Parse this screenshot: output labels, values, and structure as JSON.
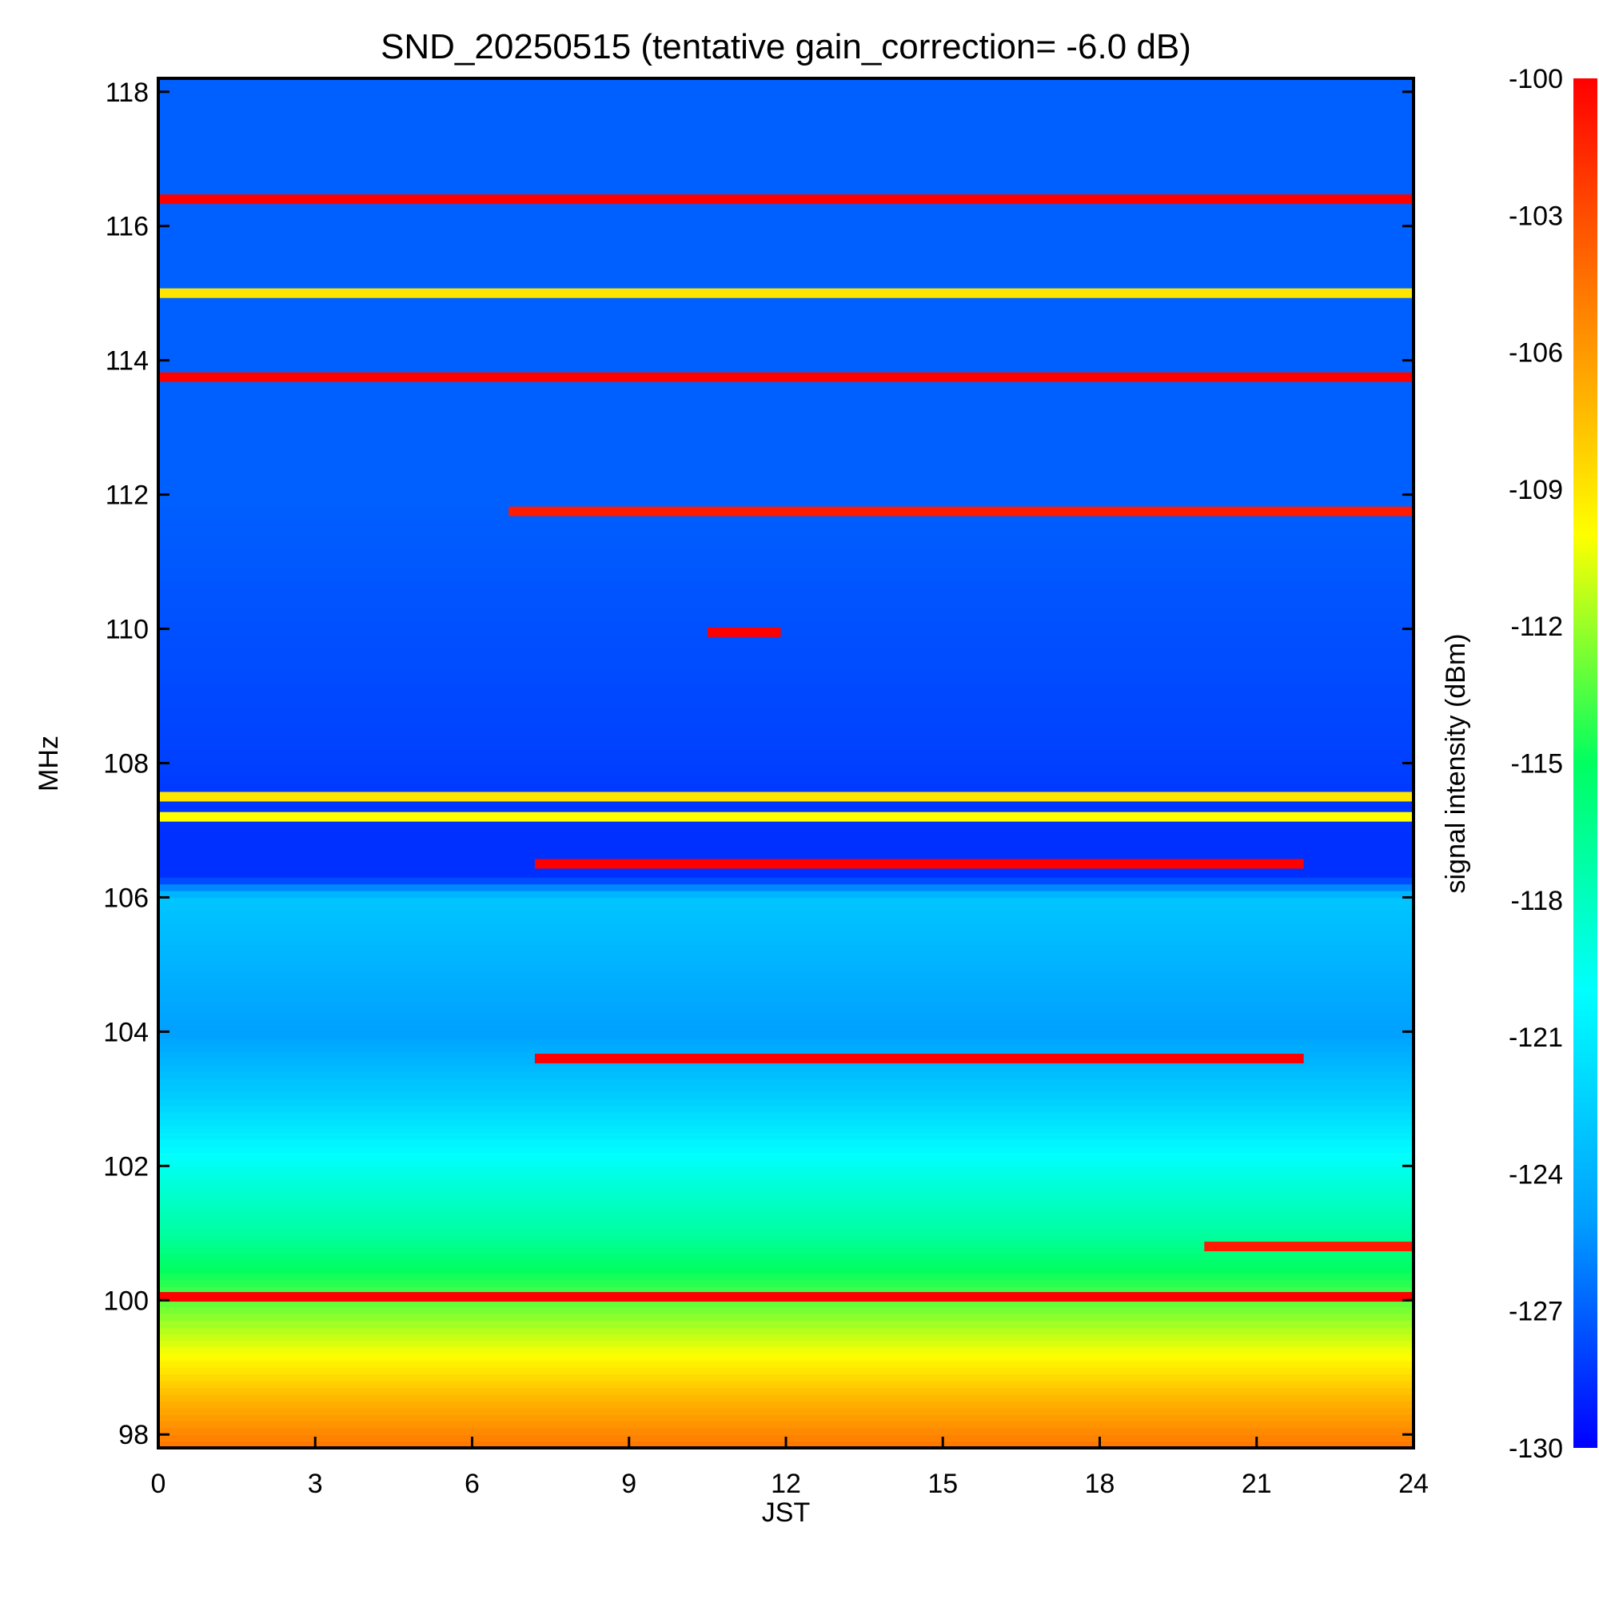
{
  "chart_data": {
    "type": "heatmap",
    "title": "SND_20250515 (tentative gain_correction= -6.0 dB)",
    "xlabel": "JST",
    "ylabel": "MHz",
    "xlim": [
      0,
      24
    ],
    "ylim": [
      97.8,
      118.2
    ],
    "xticks": [
      "0",
      "3",
      "6",
      "9",
      "12",
      "15",
      "18",
      "21",
      "24"
    ],
    "yticks": [
      "98",
      "100",
      "102",
      "104",
      "106",
      "108",
      "110",
      "112",
      "114",
      "116",
      "118"
    ],
    "colorbar": {
      "label": "signal intensity (dBm)",
      "range": [
        -130,
        -100
      ],
      "ticks": [
        "-100",
        "-103",
        "-106",
        "-109",
        "-112",
        "-115",
        "-118",
        "-121",
        "-124",
        "-127",
        "-130"
      ],
      "colormap": [
        "#0000ff",
        "#00a0ff",
        "#00ffff",
        "#00ff60",
        "#ffff00",
        "#ff8000",
        "#ff0000"
      ]
    },
    "background_profile": [
      {
        "freq": 97.8,
        "dbm": -104.5
      },
      {
        "freq": 98.5,
        "dbm": -107
      },
      {
        "freq": 99.3,
        "dbm": -110.5
      },
      {
        "freq": 100.2,
        "dbm": -114
      },
      {
        "freq": 101.0,
        "dbm": -117
      },
      {
        "freq": 102.0,
        "dbm": -119.5
      },
      {
        "freq": 103.0,
        "dbm": -122.5
      },
      {
        "freq": 104.0,
        "dbm": -125
      },
      {
        "freq": 105.0,
        "dbm": -124
      },
      {
        "freq": 106.0,
        "dbm": -123
      },
      {
        "freq": 106.3,
        "dbm": -128.5
      },
      {
        "freq": 107.0,
        "dbm": -128.5
      },
      {
        "freq": 108.0,
        "dbm": -128
      },
      {
        "freq": 112.0,
        "dbm": -127
      },
      {
        "freq": 118.2,
        "dbm": -127
      }
    ],
    "signals": [
      {
        "freq": 116.4,
        "t_start": 0,
        "t_end": 24,
        "dbm": -100
      },
      {
        "freq": 115.0,
        "t_start": 0,
        "t_end": 24,
        "dbm": -109
      },
      {
        "freq": 113.75,
        "t_start": 0,
        "t_end": 24,
        "dbm": -100
      },
      {
        "freq": 111.75,
        "t_start": 6.7,
        "t_end": 24,
        "dbm": -101
      },
      {
        "freq": 109.95,
        "t_start": 10.5,
        "t_end": 11.9,
        "dbm": -100
      },
      {
        "freq": 107.5,
        "t_start": 0,
        "t_end": 24,
        "dbm": -109
      },
      {
        "freq": 107.2,
        "t_start": 0,
        "t_end": 24,
        "dbm": -110
      },
      {
        "freq": 106.5,
        "t_start": 7.2,
        "t_end": 21.9,
        "dbm": -100
      },
      {
        "freq": 103.6,
        "t_start": 7.2,
        "t_end": 21.9,
        "dbm": -100
      },
      {
        "freq": 100.8,
        "t_start": 20.0,
        "t_end": 24,
        "dbm": -101
      },
      {
        "freq": 100.05,
        "t_start": 0,
        "t_end": 24,
        "dbm": -100
      }
    ]
  }
}
